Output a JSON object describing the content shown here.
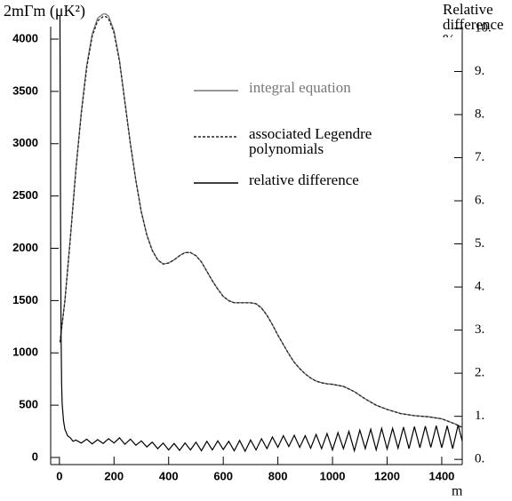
{
  "chart_data": {
    "type": "line",
    "ylabel": "2mΓm (μK²)",
    "y2label": "Relative difference %",
    "xlabel": "m",
    "xlim": [
      -32,
      1475
    ],
    "xticks": [
      0,
      200,
      400,
      600,
      800,
      1000,
      1200,
      1400
    ],
    "ylim": [
      -68,
      4255
    ],
    "yticks": [
      0,
      500,
      1000,
      1500,
      2000,
      2500,
      3000,
      3500,
      4000
    ],
    "y2lim": [
      -0.12,
      10.37
    ],
    "y2ticks": [
      {
        "value": 0,
        "label": "0."
      },
      {
        "value": 1,
        "label": "1."
      },
      {
        "value": 2,
        "label": "2."
      },
      {
        "value": 3,
        "label": "3."
      },
      {
        "value": 4,
        "label": "4."
      },
      {
        "value": 5,
        "label": "5."
      },
      {
        "value": 6,
        "label": "6."
      },
      {
        "value": 7,
        "label": "7."
      },
      {
        "value": 8,
        "label": "8."
      },
      {
        "value": 9,
        "label": "9."
      },
      {
        "value": 10,
        "label": "10."
      }
    ],
    "legend": "upper right",
    "series": [
      {
        "name": "integral equation",
        "color": "#777777",
        "dash": false,
        "x": [
          2,
          20,
          40,
          60,
          80,
          100,
          120,
          140,
          160,
          170,
          180,
          200,
          220,
          240,
          260,
          280,
          300,
          320,
          340,
          360,
          380,
          400,
          420,
          440,
          460,
          480,
          500,
          520,
          540,
          560,
          580,
          600,
          620,
          640,
          660,
          680,
          700,
          720,
          740,
          760,
          780,
          800,
          820,
          840,
          860,
          880,
          900,
          920,
          940,
          960,
          980,
          1000,
          1040,
          1080,
          1120,
          1160,
          1200,
          1250,
          1300,
          1350,
          1400,
          1450,
          1500
        ],
        "values": [
          1100,
          1500,
          2100,
          2750,
          3300,
          3750,
          4050,
          4200,
          4240,
          4240,
          4220,
          4080,
          3800,
          3400,
          3000,
          2650,
          2350,
          2130,
          1980,
          1890,
          1850,
          1860,
          1890,
          1930,
          1960,
          1960,
          1930,
          1870,
          1780,
          1690,
          1610,
          1540,
          1500,
          1480,
          1480,
          1480,
          1480,
          1470,
          1430,
          1360,
          1270,
          1170,
          1080,
          990,
          910,
          850,
          800,
          760,
          730,
          715,
          705,
          700,
          680,
          630,
          560,
          500,
          460,
          420,
          400,
          390,
          370,
          320,
          255
        ]
      },
      {
        "name": "associated Legendre polynomials",
        "color": "#222222",
        "dash": true,
        "x": [
          2,
          20,
          40,
          60,
          80,
          100,
          120,
          140,
          160,
          170,
          180,
          200,
          220,
          240,
          260,
          280,
          300,
          320,
          340,
          360,
          380,
          400,
          420,
          440,
          460,
          480,
          500,
          520,
          540,
          560,
          580,
          600,
          620,
          640,
          660,
          680,
          700,
          720,
          740,
          760,
          780,
          800,
          820,
          840,
          860,
          880,
          900,
          920,
          940,
          960,
          980,
          1000,
          1040,
          1080,
          1120,
          1160,
          1200,
          1250,
          1300,
          1350,
          1400,
          1450,
          1500
        ],
        "values": [
          1100,
          1490,
          2090,
          2735,
          3280,
          3725,
          4025,
          4175,
          4215,
          4215,
          4195,
          4060,
          3785,
          3390,
          2995,
          2645,
          2345,
          2127,
          1978,
          1888,
          1849,
          1859,
          1889,
          1929,
          1959,
          1959,
          1929,
          1869,
          1779,
          1689,
          1609,
          1539,
          1499,
          1479,
          1479,
          1479,
          1479,
          1469,
          1429,
          1359,
          1269,
          1169,
          1079,
          989,
          909,
          849,
          799,
          759,
          729,
          714,
          704,
          699,
          679,
          629,
          559,
          499,
          459,
          419,
          399,
          389,
          369,
          319,
          254
        ]
      },
      {
        "name": "relative difference",
        "color": "#000000",
        "dash": false,
        "axis": "y2",
        "x": [
          2,
          4,
          6,
          8,
          10,
          15,
          20,
          30,
          40,
          50,
          60,
          80,
          100,
          120,
          140,
          160,
          180,
          200,
          220,
          240,
          260,
          280,
          300,
          320,
          340,
          360,
          380,
          400,
          420,
          440,
          460,
          480,
          500,
          520,
          540,
          560,
          580,
          600,
          620,
          640,
          660,
          680,
          700,
          720,
          740,
          760,
          780,
          800,
          820,
          840,
          860,
          880,
          900,
          920,
          940,
          960,
          980,
          1000,
          1020,
          1040,
          1060,
          1080,
          1100,
          1120,
          1140,
          1160,
          1180,
          1200,
          1220,
          1240,
          1260,
          1280,
          1300,
          1320,
          1340,
          1360,
          1380,
          1400,
          1420,
          1440,
          1460,
          1480,
          1500
        ],
        "values": [
          10.3,
          6.0,
          3.0,
          1.8,
          1.3,
          0.9,
          0.7,
          0.55,
          0.5,
          0.42,
          0.45,
          0.38,
          0.47,
          0.36,
          0.46,
          0.37,
          0.48,
          0.38,
          0.5,
          0.35,
          0.47,
          0.33,
          0.43,
          0.29,
          0.4,
          0.25,
          0.38,
          0.22,
          0.37,
          0.21,
          0.38,
          0.22,
          0.4,
          0.2,
          0.42,
          0.22,
          0.43,
          0.23,
          0.42,
          0.2,
          0.44,
          0.19,
          0.45,
          0.22,
          0.48,
          0.25,
          0.52,
          0.28,
          0.55,
          0.3,
          0.56,
          0.28,
          0.55,
          0.26,
          0.58,
          0.25,
          0.6,
          0.22,
          0.62,
          0.25,
          0.65,
          0.2,
          0.68,
          0.25,
          0.7,
          0.22,
          0.72,
          0.24,
          0.72,
          0.26,
          0.75,
          0.25,
          0.76,
          0.27,
          0.77,
          0.28,
          0.78,
          0.27,
          0.78,
          0.25,
          0.8,
          0.3,
          0.75
        ]
      }
    ]
  }
}
